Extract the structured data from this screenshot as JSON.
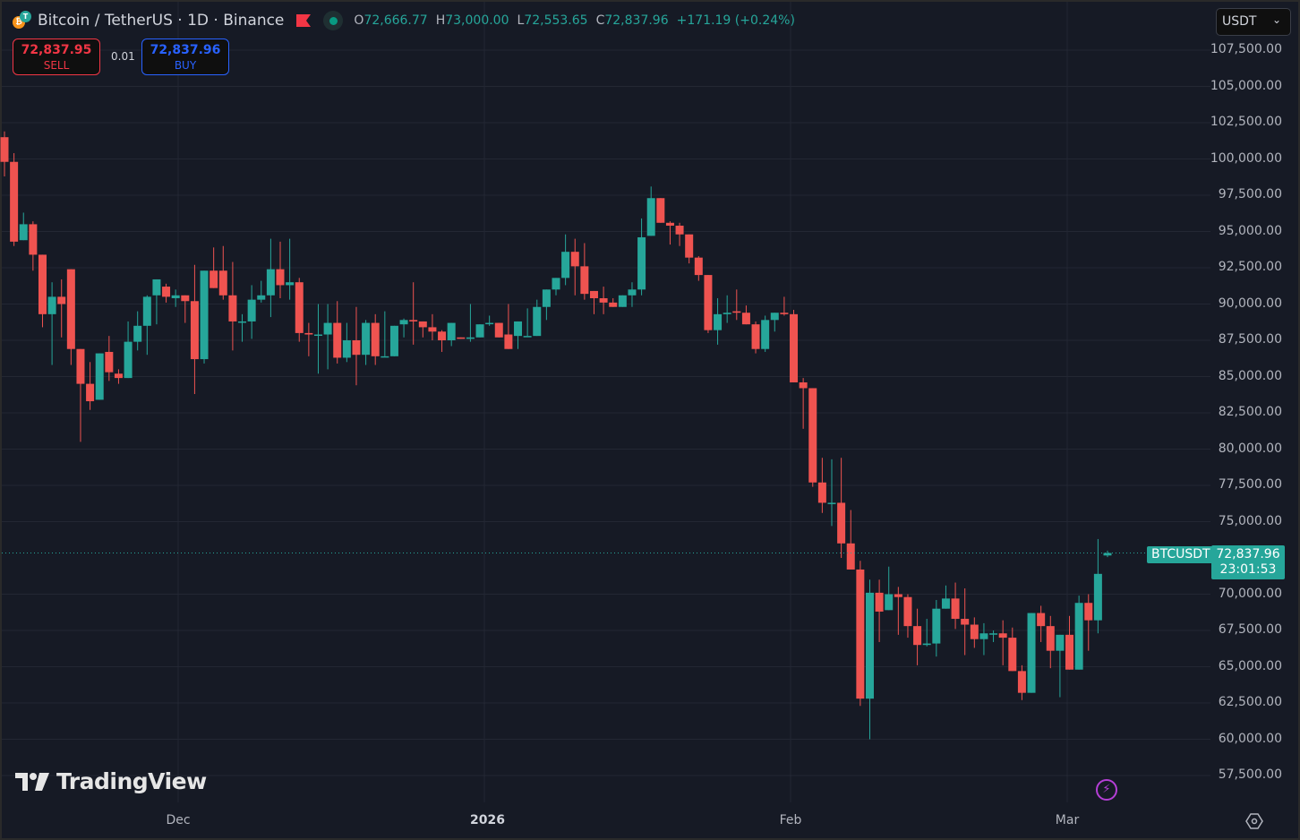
{
  "header": {
    "title": "Bitcoin / TetherUS · 1D · Binance",
    "ohlc": {
      "o_label": "O",
      "o": "72,666.77",
      "h_label": "H",
      "h": "73,000.00",
      "l_label": "L",
      "l": "72,553.65",
      "c_label": "C",
      "c": "72,837.96",
      "change": "+171.19 (+0.24%)"
    }
  },
  "trade": {
    "sell_price": "72,837.95",
    "sell_label": "SELL",
    "spread": "0.01",
    "buy_price": "72,837.96",
    "buy_label": "BUY"
  },
  "currency_select": {
    "value": "USDT"
  },
  "price_scale": {
    "labels": [
      "107,500.00",
      "105,000.00",
      "102,500.00",
      "100,000.00",
      "97,500.00",
      "95,000.00",
      "92,500.00",
      "90,000.00",
      "87,500.00",
      "85,000.00",
      "82,500.00",
      "80,000.00",
      "77,500.00",
      "75,000.00",
      "70,000.00",
      "67,500.00",
      "65,000.00",
      "62,500.00",
      "60,000.00",
      "57,500.00"
    ],
    "symbol_tag": "BTCUSDT",
    "last_price": "72,837.96",
    "countdown": "23:01:53"
  },
  "time_scale": {
    "labels": [
      {
        "text": "Dec",
        "x": 199,
        "bold": false
      },
      {
        "text": "2026",
        "x": 541,
        "bold": true
      },
      {
        "text": "Feb",
        "x": 883,
        "bold": false
      },
      {
        "text": "Mar",
        "x": 1192,
        "bold": false
      }
    ]
  },
  "branding": {
    "logo_text": "TradingView"
  },
  "colors": {
    "up": "#26a69a",
    "down": "#ef5350",
    "background": "#161a25",
    "grid": "#232733",
    "sell": "#f23645",
    "buy": "#2962ff"
  },
  "chart_data": {
    "type": "candlestick",
    "title": "Bitcoin / TetherUS · 1D · Binance",
    "xlabel": "",
    "ylabel": "USDT",
    "ylim": [
      55800,
      109300
    ],
    "x_ticks": [
      "Dec",
      "2026",
      "Feb",
      "Mar"
    ],
    "last_price": 72837.96,
    "candles": [
      [
        101500,
        101900,
        98800,
        99800
      ],
      [
        99800,
        100400,
        94000,
        94300
      ],
      [
        94400,
        96300,
        94400,
        95500
      ],
      [
        95500,
        95700,
        92300,
        93400
      ],
      [
        93400,
        93000,
        88400,
        89300
      ],
      [
        89300,
        91500,
        85800,
        90500
      ],
      [
        90500,
        91700,
        87700,
        90000
      ],
      [
        92400,
        91900,
        85800,
        86900
      ],
      [
        86900,
        86700,
        80500,
        84500
      ],
      [
        84500,
        86000,
        82700,
        83300
      ],
      [
        83400,
        86200,
        84100,
        86600
      ],
      [
        86700,
        87800,
        84700,
        85300
      ],
      [
        85200,
        85500,
        84500,
        84900
      ],
      [
        84900,
        88800,
        85000,
        87400
      ],
      [
        87400,
        89500,
        86800,
        88500
      ],
      [
        88500,
        90600,
        86500,
        90500
      ],
      [
        90600,
        91500,
        88600,
        91700
      ],
      [
        91200,
        91400,
        90100,
        90500
      ],
      [
        90400,
        91000,
        89800,
        90600
      ],
      [
        90600,
        90600,
        88700,
        90200
      ],
      [
        90200,
        92700,
        83800,
        86200
      ],
      [
        86200,
        92000,
        85900,
        92300
      ],
      [
        92300,
        93900,
        91500,
        91100
      ],
      [
        92300,
        94000,
        90300,
        90600
      ],
      [
        90600,
        92900,
        86800,
        88800
      ],
      [
        88800,
        89300,
        87400,
        88800
      ],
      [
        88800,
        91300,
        87600,
        90300
      ],
      [
        90300,
        91600,
        90100,
        90600
      ],
      [
        90600,
        94500,
        89100,
        92400
      ],
      [
        92400,
        94300,
        90400,
        91300
      ],
      [
        91300,
        94500,
        90300,
        91500
      ],
      [
        91500,
        91800,
        87400,
        88000
      ],
      [
        88000,
        88700,
        86400,
        87900
      ],
      [
        87900,
        90000,
        85200,
        87900
      ],
      [
        87900,
        90000,
        85500,
        88700
      ],
      [
        88700,
        90200,
        85900,
        86300
      ],
      [
        86300,
        88700,
        86000,
        87500
      ],
      [
        87500,
        89800,
        84400,
        86500
      ],
      [
        86500,
        88900,
        85800,
        88700
      ],
      [
        88700,
        89300,
        85800,
        86400
      ],
      [
        86400,
        89500,
        86500,
        86400
      ],
      [
        86400,
        88300,
        88100,
        88500
      ],
      [
        88600,
        89000,
        87700,
        88900
      ],
      [
        88900,
        91500,
        87200,
        88800
      ],
      [
        88800,
        88600,
        87700,
        88400
      ],
      [
        88400,
        89300,
        87500,
        88100
      ],
      [
        88100,
        88200,
        86700,
        87500
      ],
      [
        87500,
        87000,
        87100,
        88700
      ],
      [
        87700,
        87600,
        88000,
        87600
      ],
      [
        87600,
        90000,
        87400,
        87700
      ],
      [
        87700,
        88100,
        88400,
        88600
      ],
      [
        88700,
        89200,
        88500,
        88700
      ],
      [
        88700,
        88700,
        87700,
        87700
      ],
      [
        87900,
        90000,
        87300,
        86900
      ],
      [
        87800,
        88600,
        86900,
        88800
      ],
      [
        87800,
        89700,
        88300,
        87800
      ],
      [
        87800,
        90300,
        87800,
        89800
      ],
      [
        89800,
        90800,
        88900,
        91000
      ],
      [
        91000,
        91300,
        90600,
        91800
      ],
      [
        91800,
        94800,
        91300,
        93600
      ],
      [
        93600,
        94500,
        90600,
        92600
      ],
      [
        92600,
        94200,
        90300,
        90700
      ],
      [
        90900,
        90900,
        89300,
        90400
      ],
      [
        90400,
        91200,
        89300,
        90100
      ],
      [
        90100,
        90400,
        89900,
        89800
      ],
      [
        89800,
        90200,
        90000,
        90600
      ],
      [
        90600,
        91500,
        89800,
        91000
      ],
      [
        91000,
        95900,
        90600,
        94600
      ],
      [
        94700,
        98100,
        95000,
        97300
      ],
      [
        97300,
        96900,
        95800,
        95600
      ],
      [
        95600,
        95700,
        94100,
        95400
      ],
      [
        95400,
        95600,
        94000,
        94800
      ],
      [
        94800,
        94700,
        92800,
        93200
      ],
      [
        93200,
        93300,
        91600,
        92000
      ],
      [
        92000,
        91200,
        88000,
        88200
      ],
      [
        88200,
        90400,
        87200,
        89300
      ],
      [
        89300,
        90600,
        88700,
        89400
      ],
      [
        89500,
        91000,
        88900,
        89400
      ],
      [
        89400,
        89900,
        88900,
        88600
      ],
      [
        88600,
        88800,
        86600,
        86900
      ],
      [
        86900,
        89200,
        86700,
        88900
      ],
      [
        88900,
        89300,
        88100,
        89400
      ],
      [
        89400,
        90500,
        89200,
        89300
      ],
      [
        89300,
        89600,
        84800,
        84600
      ],
      [
        84600,
        84900,
        81400,
        84200
      ],
      [
        84200,
        84200,
        77400,
        77700
      ],
      [
        77700,
        79400,
        75600,
        76300
      ],
      [
        76300,
        79300,
        74700,
        76300
      ],
      [
        76300,
        79400,
        72500,
        73500
      ],
      [
        73500,
        75800,
        71900,
        71700
      ],
      [
        71700,
        72300,
        62300,
        62800
      ],
      [
        62800,
        71000,
        60000,
        70100
      ],
      [
        70100,
        71000,
        66700,
        68800
      ],
      [
        68900,
        71900,
        69900,
        70000
      ],
      [
        70000,
        70500,
        67200,
        69800
      ],
      [
        69800,
        70000,
        67000,
        67800
      ],
      [
        67800,
        69000,
        65100,
        66500
      ],
      [
        66500,
        68300,
        66400,
        66600
      ],
      [
        66600,
        69600,
        65700,
        69000
      ],
      [
        69000,
        70600,
        69100,
        69700
      ],
      [
        69700,
        70800,
        67600,
        68300
      ],
      [
        68300,
        70400,
        65800,
        67900
      ],
      [
        67900,
        68400,
        66300,
        66900
      ],
      [
        66900,
        68000,
        65800,
        67300
      ],
      [
        67300,
        67500,
        66700,
        67300
      ],
      [
        67300,
        68200,
        65100,
        67000
      ],
      [
        67000,
        67700,
        65800,
        64700
      ],
      [
        64700,
        65100,
        62700,
        63200
      ],
      [
        63200,
        68500,
        64200,
        68700
      ],
      [
        68700,
        69200,
        66700,
        67800
      ],
      [
        67800,
        68500,
        64900,
        66100
      ],
      [
        66100,
        67000,
        62900,
        67200
      ],
      [
        67200,
        68500,
        65000,
        64800
      ],
      [
        64800,
        69900,
        65300,
        69400
      ],
      [
        69400,
        70000,
        66100,
        68200
      ],
      [
        68200,
        73800,
        67300,
        71400
      ],
      [
        72666.77,
        73000,
        72553.65,
        72837.96
      ]
    ]
  }
}
